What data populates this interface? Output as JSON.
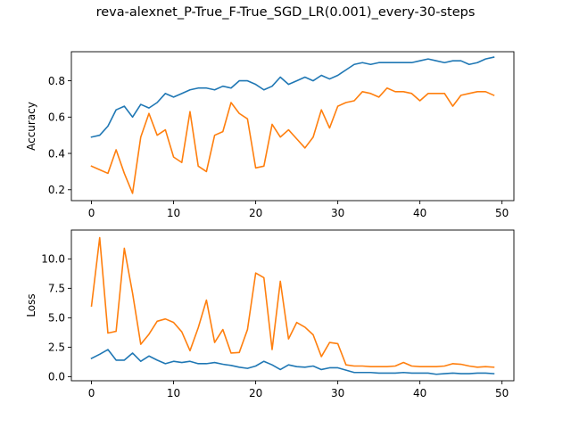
{
  "figure": {
    "title": "reva-alexnet_P-True_F-True_SGD_LR(0.001)_every-30-steps"
  },
  "chart_data": [
    {
      "type": "line",
      "xlabel": "",
      "ylabel": "Accuracy",
      "xlim": [
        -2.45,
        51.45
      ],
      "ylim": [
        0.14,
        0.96
      ],
      "xticks": [
        0,
        10,
        20,
        30,
        40,
        50
      ],
      "yticks": [
        0.2,
        0.4,
        0.6,
        0.8
      ],
      "ytick_labels": [
        "0.2",
        "0.4",
        "0.6",
        "0.8"
      ],
      "grid": false,
      "series": [
        {
          "color": "#1f77b4",
          "x": [
            0,
            1,
            2,
            3,
            4,
            5,
            6,
            7,
            8,
            9,
            10,
            11,
            12,
            13,
            14,
            15,
            16,
            17,
            18,
            19,
            20,
            21,
            22,
            23,
            24,
            25,
            26,
            27,
            28,
            29,
            30,
            31,
            32,
            33,
            34,
            35,
            36,
            37,
            38,
            39,
            40,
            41,
            42,
            43,
            44,
            45,
            46,
            47,
            48,
            49
          ],
          "values": [
            0.49,
            0.5,
            0.55,
            0.64,
            0.66,
            0.6,
            0.67,
            0.65,
            0.68,
            0.73,
            0.71,
            0.73,
            0.75,
            0.76,
            0.76,
            0.75,
            0.77,
            0.76,
            0.8,
            0.8,
            0.78,
            0.75,
            0.77,
            0.82,
            0.78,
            0.8,
            0.82,
            0.8,
            0.83,
            0.81,
            0.83,
            0.86,
            0.89,
            0.9,
            0.89,
            0.9,
            0.9,
            0.9,
            0.9,
            0.9,
            0.91,
            0.92,
            0.91,
            0.9,
            0.91,
            0.91,
            0.89,
            0.9,
            0.92,
            0.93
          ]
        },
        {
          "color": "#ff7f0e",
          "x": [
            0,
            1,
            2,
            3,
            4,
            5,
            6,
            7,
            8,
            9,
            10,
            11,
            12,
            13,
            14,
            15,
            16,
            17,
            18,
            19,
            20,
            21,
            22,
            23,
            24,
            25,
            26,
            27,
            28,
            29,
            30,
            31,
            32,
            33,
            34,
            35,
            36,
            37,
            38,
            39,
            40,
            41,
            42,
            43,
            44,
            45,
            46,
            47,
            48,
            49
          ],
          "values": [
            0.33,
            0.31,
            0.29,
            0.42,
            0.29,
            0.18,
            0.49,
            0.62,
            0.5,
            0.53,
            0.38,
            0.35,
            0.63,
            0.33,
            0.3,
            0.5,
            0.52,
            0.68,
            0.62,
            0.59,
            0.32,
            0.33,
            0.56,
            0.49,
            0.53,
            0.48,
            0.43,
            0.49,
            0.64,
            0.54,
            0.66,
            0.68,
            0.69,
            0.74,
            0.73,
            0.71,
            0.76,
            0.74,
            0.74,
            0.73,
            0.69,
            0.73,
            0.73,
            0.73,
            0.66,
            0.72,
            0.73,
            0.74,
            0.74,
            0.72
          ]
        }
      ]
    },
    {
      "type": "line",
      "xlabel": "",
      "ylabel": "Loss",
      "xlim": [
        -2.45,
        51.45
      ],
      "ylim": [
        -0.35,
        12.45
      ],
      "xticks": [
        0,
        10,
        20,
        30,
        40,
        50
      ],
      "yticks": [
        0.0,
        2.5,
        5.0,
        7.5,
        10.0
      ],
      "ytick_labels": [
        "0.0",
        "2.5",
        "5.0",
        "7.5",
        "10.0"
      ],
      "grid": false,
      "series": [
        {
          "color": "#1f77b4",
          "x": [
            0,
            1,
            2,
            3,
            4,
            5,
            6,
            7,
            8,
            9,
            10,
            11,
            12,
            13,
            14,
            15,
            16,
            17,
            18,
            19,
            20,
            21,
            22,
            23,
            24,
            25,
            26,
            27,
            28,
            29,
            30,
            31,
            32,
            33,
            34,
            35,
            36,
            37,
            38,
            39,
            40,
            41,
            42,
            43,
            44,
            45,
            46,
            47,
            48,
            49
          ],
          "values": [
            1.55,
            1.9,
            2.3,
            1.4,
            1.4,
            2.0,
            1.3,
            1.75,
            1.4,
            1.1,
            1.3,
            1.2,
            1.3,
            1.1,
            1.1,
            1.2,
            1.05,
            0.95,
            0.8,
            0.7,
            0.9,
            1.3,
            1.0,
            0.6,
            1.0,
            0.85,
            0.8,
            0.9,
            0.6,
            0.75,
            0.75,
            0.55,
            0.35,
            0.35,
            0.35,
            0.3,
            0.3,
            0.3,
            0.35,
            0.3,
            0.3,
            0.3,
            0.2,
            0.25,
            0.3,
            0.25,
            0.25,
            0.3,
            0.3,
            0.25
          ]
        },
        {
          "color": "#ff7f0e",
          "x": [
            0,
            1,
            2,
            3,
            4,
            5,
            6,
            7,
            8,
            9,
            10,
            11,
            12,
            13,
            14,
            15,
            16,
            17,
            18,
            19,
            20,
            21,
            22,
            23,
            24,
            25,
            26,
            27,
            28,
            29,
            30,
            31,
            32,
            33,
            34,
            35,
            36,
            37,
            38,
            39,
            40,
            41,
            42,
            43,
            44,
            45,
            46,
            47,
            48,
            49
          ],
          "values": [
            6.0,
            11.8,
            3.7,
            3.85,
            10.9,
            7.1,
            2.75,
            3.6,
            4.7,
            4.9,
            4.6,
            3.8,
            2.2,
            4.15,
            6.5,
            2.9,
            4.0,
            2.0,
            2.05,
            4.0,
            8.8,
            8.4,
            2.3,
            8.1,
            3.2,
            4.6,
            4.2,
            3.55,
            1.7,
            2.9,
            2.8,
            1.0,
            0.9,
            0.9,
            0.85,
            0.85,
            0.85,
            0.9,
            1.2,
            0.9,
            0.85,
            0.85,
            0.85,
            0.9,
            1.1,
            1.05,
            0.9,
            0.8,
            0.85,
            0.8
          ]
        }
      ]
    }
  ]
}
